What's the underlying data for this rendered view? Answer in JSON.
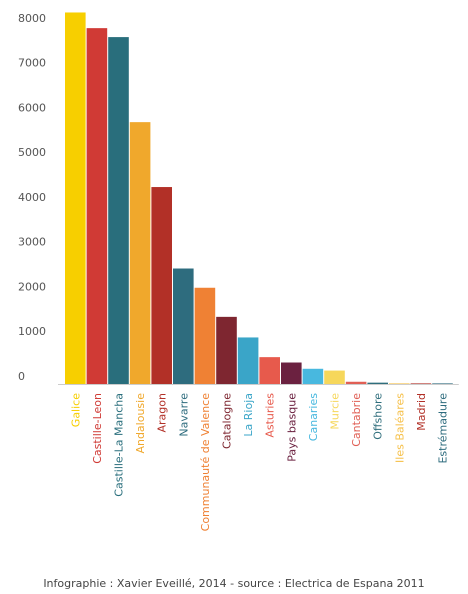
{
  "chart_data": {
    "type": "bar",
    "categories": [
      "Galice",
      "Castille-Leon",
      "Castille-La Mancha",
      "Andalousie",
      "Aragon",
      "Navarre",
      "Communauté de Valence",
      "Catalogne",
      "La Rioja",
      "Asturies",
      "Pays basque",
      "Canaries",
      "Murcie",
      "Cantabrie",
      "Offshore",
      "Iles Baléares",
      "Madrid",
      "Estrémadure"
    ],
    "values": [
      8300,
      7950,
      7750,
      5850,
      4400,
      2580,
      2150,
      1500,
      1040,
      600,
      480,
      340,
      300,
      50,
      30,
      5,
      5,
      5
    ],
    "colors": [
      "#F7CF00",
      "#D03A35",
      "#296E7C",
      "#F0A82C",
      "#B23027",
      "#2E6C7E",
      "#EF8134",
      "#7E2630",
      "#3AA5C8",
      "#E75A4C",
      "#6B2140",
      "#48B8DF",
      "#F6D75B",
      "#E05F55",
      "#2F6E7C",
      "#F6C049",
      "#B23027",
      "#2E6C7E"
    ],
    "yticks": [
      0,
      1000,
      2000,
      3000,
      4000,
      5000,
      6000,
      7000,
      8000
    ],
    "ylim": [
      0,
      8400
    ],
    "grid": false,
    "title": "",
    "xlabel": "",
    "ylabel": ""
  },
  "caption": "Infographie : Xavier Eveillé, 2014 - source : Electrica de Espana 2011"
}
